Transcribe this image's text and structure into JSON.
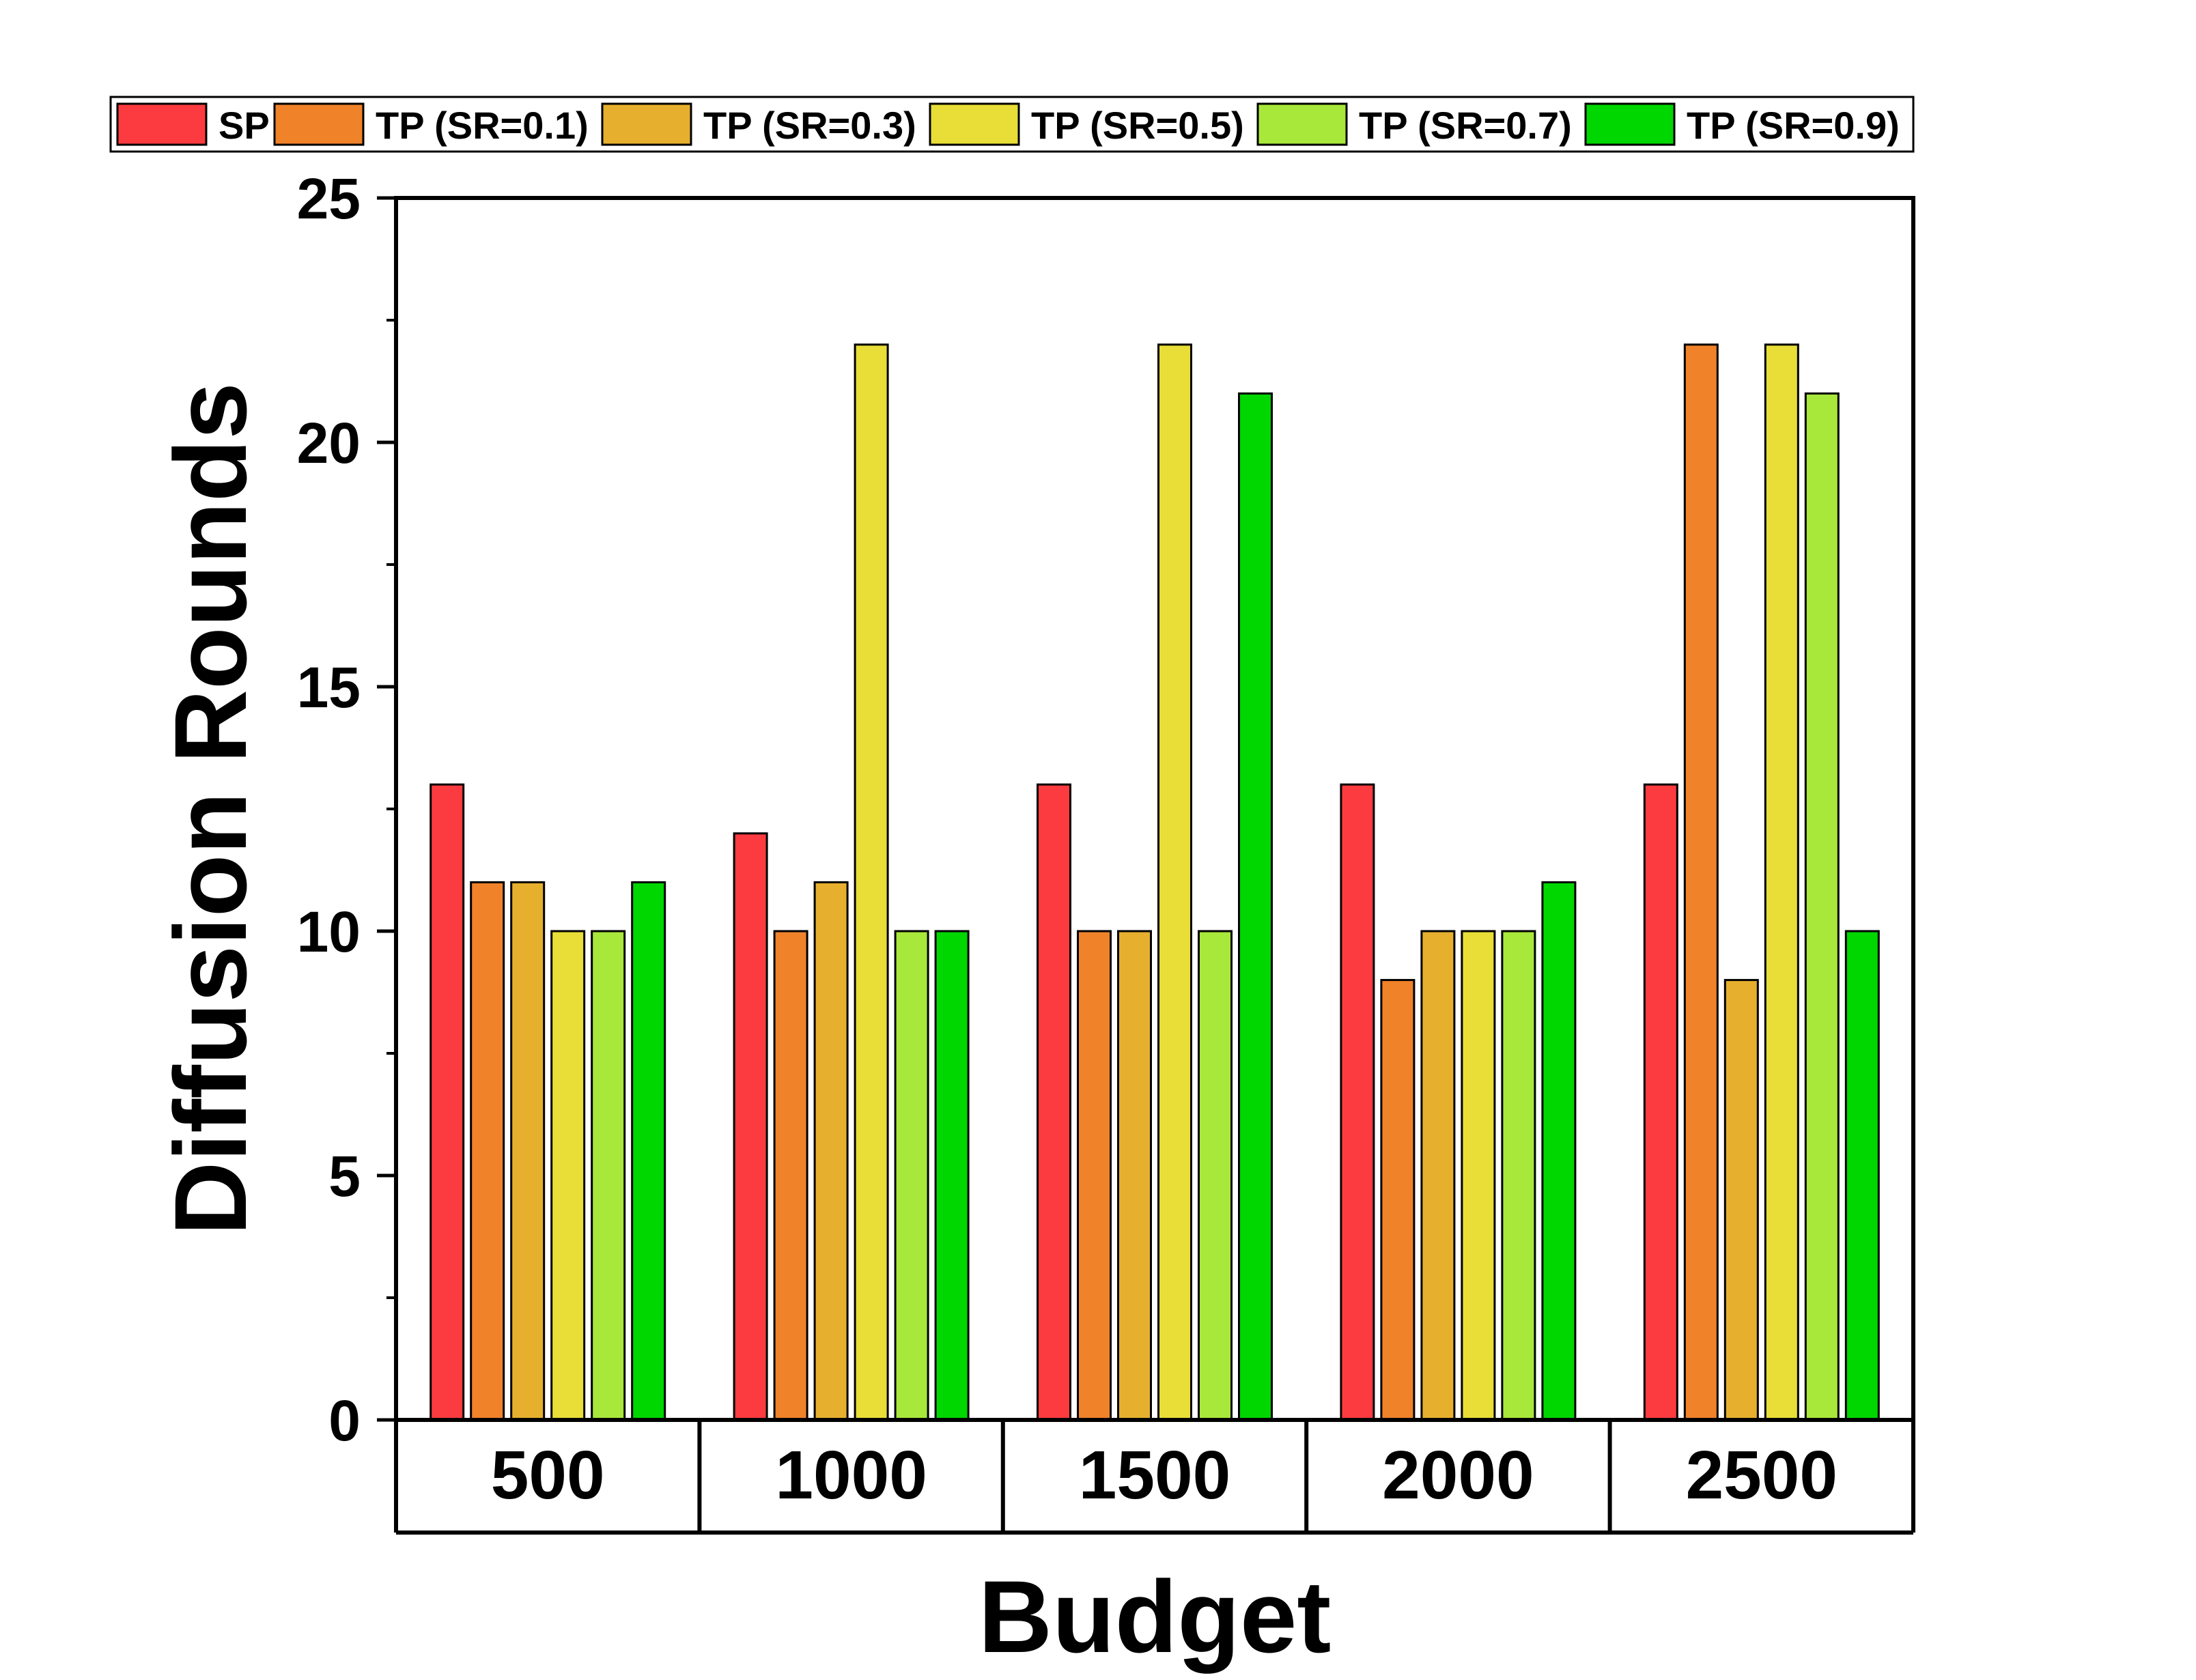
{
  "chart_data": {
    "type": "bar",
    "title": "",
    "xlabel": "Budget",
    "ylabel": "Diffusion Rounds",
    "categories": [
      "500",
      "1000",
      "1500",
      "2000",
      "2500"
    ],
    "ylim": [
      0,
      25
    ],
    "yticks": [
      "0",
      "5",
      "10",
      "15",
      "20",
      "25"
    ],
    "grid": false,
    "legend_position": "top",
    "series": [
      {
        "name": "SP",
        "color": "#fb3b3f",
        "values": [
          13,
          12,
          13,
          13,
          13
        ]
      },
      {
        "name": "TP (SR=0.1)",
        "color": "#f0822a",
        "values": [
          11,
          10,
          10,
          9,
          22
        ]
      },
      {
        "name": "TP (SR=0.3)",
        "color": "#e6b02e",
        "values": [
          11,
          11,
          10,
          10,
          9
        ]
      },
      {
        "name": "TP (SR=0.5)",
        "color": "#e8de37",
        "values": [
          10,
          22,
          22,
          10,
          22
        ]
      },
      {
        "name": "TP (SR=0.7)",
        "color": "#a8e83a",
        "values": [
          10,
          10,
          10,
          10,
          21
        ]
      },
      {
        "name": "TP (SR=0.9)",
        "color": "#00d600",
        "values": [
          11,
          10,
          21,
          11,
          10
        ]
      }
    ]
  }
}
